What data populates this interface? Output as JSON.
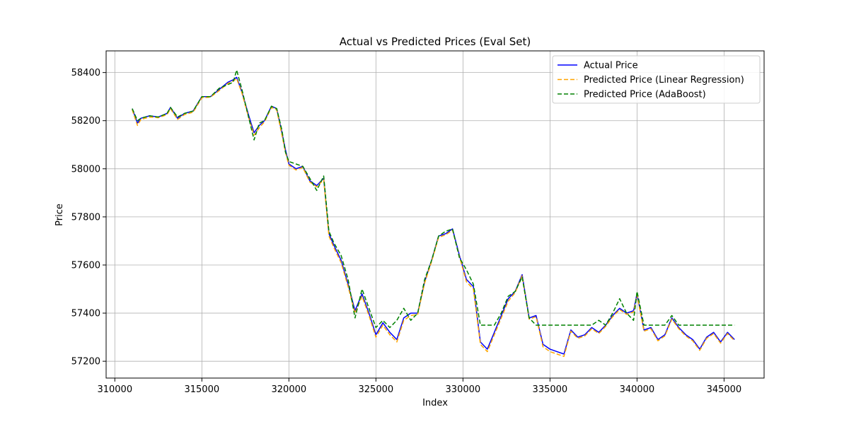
{
  "chart_data": {
    "type": "line",
    "title": "Actual vs Predicted Prices (Eval Set)",
    "xlabel": "Index",
    "ylabel": "Price",
    "xlim": [
      309500,
      347300
    ],
    "ylim": [
      57130,
      58490
    ],
    "xticks": [
      310000,
      315000,
      320000,
      325000,
      330000,
      335000,
      340000,
      345000
    ],
    "yticks": [
      57200,
      57400,
      57600,
      57800,
      58000,
      58200,
      58400
    ],
    "grid": true,
    "legend_position": "top-right",
    "series": [
      {
        "name": "Actual Price",
        "color": "#0000ff",
        "style": "solid",
        "x": [
          311000,
          311300,
          311500,
          312000,
          312500,
          313000,
          313200,
          313600,
          314000,
          314500,
          315000,
          315500,
          316000,
          316500,
          316800,
          317000,
          317300,
          317700,
          318000,
          318300,
          318600,
          319000,
          319300,
          319600,
          319800,
          320000,
          320400,
          320800,
          321200,
          321600,
          322000,
          322300,
          322600,
          323000,
          323400,
          323800,
          324200,
          324600,
          325000,
          325400,
          325800,
          326200,
          326600,
          327000,
          327400,
          327800,
          328200,
          328600,
          329000,
          329400,
          329800,
          330200,
          330600,
          331000,
          331400,
          331800,
          332200,
          332600,
          333000,
          333400,
          333800,
          334200,
          334600,
          335000,
          335400,
          335800,
          336200,
          336600,
          337000,
          337400,
          337800,
          338200,
          338600,
          339000,
          339400,
          339800,
          340000,
          340400,
          340800,
          341200,
          341600,
          342000,
          342400,
          342800,
          343200,
          343600,
          344000,
          344400,
          344800,
          345200,
          345600
        ],
        "y": [
          58250,
          58190,
          58210,
          58220,
          58215,
          58230,
          58255,
          58210,
          58230,
          58240,
          58300,
          58300,
          58330,
          58360,
          58370,
          58380,
          58320,
          58220,
          58150,
          58180,
          58200,
          58260,
          58250,
          58150,
          58080,
          58020,
          58000,
          58010,
          57950,
          57930,
          57960,
          57730,
          57680,
          57620,
          57520,
          57410,
          57480,
          57400,
          57310,
          57360,
          57320,
          57290,
          57380,
          57400,
          57400,
          57530,
          57620,
          57720,
          57730,
          57750,
          57640,
          57540,
          57510,
          57280,
          57250,
          57320,
          57390,
          57460,
          57490,
          57560,
          57380,
          57390,
          57270,
          57250,
          57240,
          57230,
          57330,
          57300,
          57310,
          57340,
          57320,
          57350,
          57390,
          57420,
          57400,
          57410,
          57480,
          57330,
          57340,
          57290,
          57310,
          57380,
          57340,
          57310,
          57290,
          57250,
          57300,
          57320,
          57280,
          57320,
          57290
        ]
      },
      {
        "name": "Predicted Price (Linear Regression)",
        "color": "#ffa500",
        "style": "dashed",
        "x": [
          311000,
          311300,
          311500,
          312000,
          312500,
          313000,
          313200,
          313600,
          314000,
          314500,
          315000,
          315500,
          316000,
          316500,
          316800,
          317000,
          317300,
          317700,
          318000,
          318300,
          318600,
          319000,
          319300,
          319600,
          319800,
          320000,
          320400,
          320800,
          321200,
          321600,
          322000,
          322300,
          322600,
          323000,
          323400,
          323800,
          324200,
          324600,
          325000,
          325400,
          325800,
          326200,
          326600,
          327000,
          327400,
          327800,
          328200,
          328600,
          329000,
          329400,
          329800,
          330200,
          330600,
          331000,
          331400,
          331800,
          332200,
          332600,
          333000,
          333400,
          333800,
          334200,
          334600,
          335000,
          335400,
          335800,
          336200,
          336600,
          337000,
          337400,
          337800,
          338200,
          338600,
          339000,
          339400,
          339800,
          340000,
          340400,
          340800,
          341200,
          341600,
          342000,
          342400,
          342800,
          343200,
          343600,
          344000,
          344400,
          344800,
          345200,
          345600
        ],
        "y": [
          58245,
          58180,
          58205,
          58215,
          58212,
          58225,
          58250,
          58205,
          58225,
          58235,
          58295,
          58298,
          58325,
          58355,
          58365,
          58375,
          58315,
          58210,
          58140,
          58170,
          58195,
          58255,
          58245,
          58140,
          58070,
          58015,
          57995,
          58005,
          57945,
          57925,
          57955,
          57720,
          57670,
          57610,
          57510,
          57400,
          57470,
          57390,
          57300,
          57350,
          57310,
          57280,
          57370,
          57390,
          57395,
          57525,
          57615,
          57715,
          57725,
          57745,
          57635,
          57530,
          57500,
          57270,
          57240,
          57310,
          57380,
          57450,
          57485,
          57555,
          57375,
          57385,
          57260,
          57240,
          57230,
          57220,
          57325,
          57295,
          57305,
          57335,
          57315,
          57345,
          57385,
          57415,
          57395,
          57405,
          57475,
          57325,
          57335,
          57285,
          57305,
          57375,
          57335,
          57305,
          57285,
          57245,
          57295,
          57315,
          57275,
          57315,
          57285
        ]
      },
      {
        "name": "Predicted Price (AdaBoost)",
        "color": "#008000",
        "style": "dashed",
        "x": [
          311000,
          311300,
          311500,
          312000,
          312500,
          313000,
          313200,
          313600,
          314000,
          314500,
          315000,
          315500,
          316000,
          316500,
          316800,
          317000,
          317300,
          317700,
          318000,
          318300,
          318600,
          319000,
          319300,
          319600,
          319800,
          320000,
          320400,
          320800,
          321200,
          321600,
          322000,
          322300,
          322600,
          323000,
          323400,
          323800,
          324200,
          324600,
          325000,
          325400,
          325800,
          326200,
          326600,
          327000,
          327400,
          327800,
          328200,
          328600,
          329000,
          329400,
          329800,
          330200,
          330600,
          331000,
          331400,
          331800,
          332200,
          332600,
          333000,
          333400,
          333800,
          334200,
          334600,
          335000,
          335400,
          335800,
          336200,
          336600,
          337000,
          337400,
          337800,
          338200,
          338600,
          339000,
          339400,
          339800,
          340000,
          340400,
          340800,
          341200,
          341600,
          342000,
          342400,
          342800,
          343200,
          343600,
          344000,
          344400,
          344800,
          345200,
          345600
        ],
        "y": [
          58250,
          58200,
          58210,
          58220,
          58215,
          58230,
          58255,
          58215,
          58230,
          58240,
          58300,
          58300,
          58335,
          58350,
          58360,
          58410,
          58330,
          58210,
          58120,
          58190,
          58200,
          58260,
          58250,
          58160,
          58070,
          58030,
          58020,
          58010,
          57960,
          57910,
          57970,
          57740,
          57690,
          57640,
          57540,
          57380,
          57500,
          57420,
          57340,
          57370,
          57340,
          57370,
          57420,
          57370,
          57400,
          57540,
          57620,
          57720,
          57740,
          57750,
          57630,
          57580,
          57520,
          57350,
          57350,
          57350,
          57400,
          57470,
          57490,
          57550,
          57380,
          57350,
          57350,
          57350,
          57350,
          57350,
          57350,
          57350,
          57350,
          57350,
          57370,
          57350,
          57400,
          57460,
          57400,
          57370,
          57490,
          57350,
          57350,
          57350,
          57350,
          57390,
          57350,
          57350,
          57350,
          57350,
          57350,
          57350,
          57350,
          57350,
          57350
        ]
      }
    ]
  }
}
